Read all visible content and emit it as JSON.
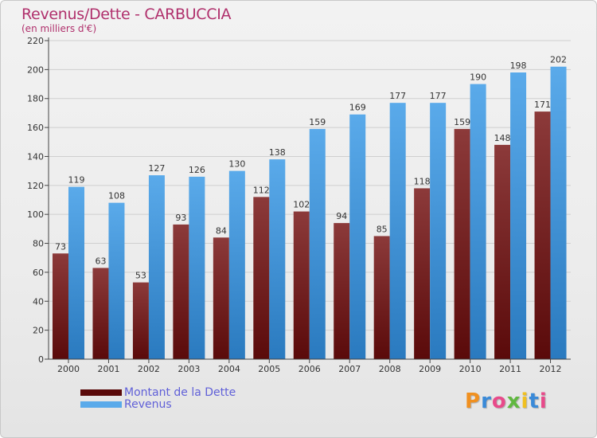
{
  "header": {
    "title": "Revenus/Dette - CARBUCCIA",
    "unit": "(en milliers d'€)"
  },
  "logo": {
    "text": "Proxiti",
    "colors": [
      "#f09020",
      "#3a8ad8",
      "#e84a8a",
      "#60b840",
      "#f0c020",
      "#3a8ad8",
      "#e84a8a"
    ]
  },
  "colors": {
    "dette_light": "#8c3a3a",
    "dette_dark": "#5a0a0a",
    "revenus_light": "#5aaaea",
    "revenus_dark": "#2a7abf",
    "grid": "#cfcfcf",
    "axis": "#444444"
  },
  "chart_data": {
    "type": "bar",
    "title": "Revenus/Dette - CARBUCCIA",
    "ylabel": "(en milliers d'€)",
    "ylim": [
      0,
      220
    ],
    "yticks": [
      0,
      20,
      40,
      60,
      80,
      100,
      120,
      140,
      160,
      180,
      200,
      220
    ],
    "grid": true,
    "legend_position": "bottom-left",
    "categories": [
      "2000",
      "2001",
      "2002",
      "2003",
      "2004",
      "2005",
      "2006",
      "2007",
      "2008",
      "2009",
      "2010",
      "2011",
      "2012"
    ],
    "series": [
      {
        "name": "Montant de la Dette",
        "values": [
          73,
          63,
          53,
          93,
          84,
          112,
          102,
          94,
          85,
          118,
          159,
          148,
          171
        ]
      },
      {
        "name": "Revenus",
        "values": [
          119,
          108,
          127,
          126,
          130,
          138,
          159,
          169,
          177,
          177,
          190,
          198,
          202
        ]
      }
    ]
  }
}
